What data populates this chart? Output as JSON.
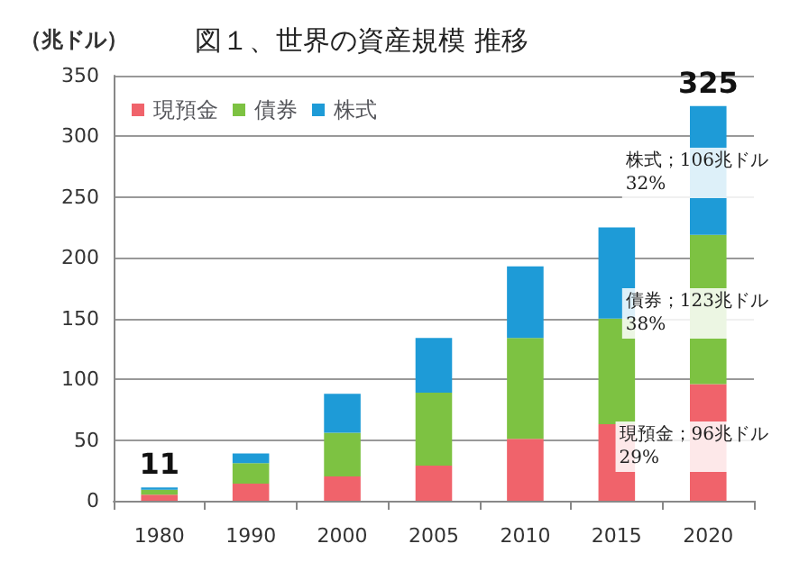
{
  "chart_data": {
    "type": "bar",
    "title": "図１、世界の資産規模 推移",
    "ylabel": "（兆ドル）",
    "categories": [
      "1980",
      "1990",
      "2000",
      "2005",
      "2010",
      "2015",
      "2020"
    ],
    "stacked": true,
    "series": [
      {
        "name": "現預金",
        "color": "#f0636b",
        "values": [
          5,
          14,
          20,
          29,
          51,
          63,
          96
        ]
      },
      {
        "name": "債券",
        "color": "#7dc242",
        "values": [
          4,
          17,
          36,
          60,
          83,
          87,
          123
        ]
      },
      {
        "name": "株式",
        "color": "#1e9bd7",
        "values": [
          2,
          8,
          32,
          45,
          59,
          75,
          106
        ]
      }
    ],
    "totals": [
      "11",
      null,
      null,
      null,
      null,
      null,
      "325"
    ],
    "annotations": [
      "株式；106兆ドル\n32%",
      "債券；123兆ドル\n38%",
      "現預金；96兆ドル\n29%"
    ],
    "ylim": [
      0,
      350
    ],
    "yticks": [
      0,
      50,
      100,
      150,
      200,
      250,
      300,
      350
    ],
    "grid": "y",
    "legend": "top left"
  }
}
